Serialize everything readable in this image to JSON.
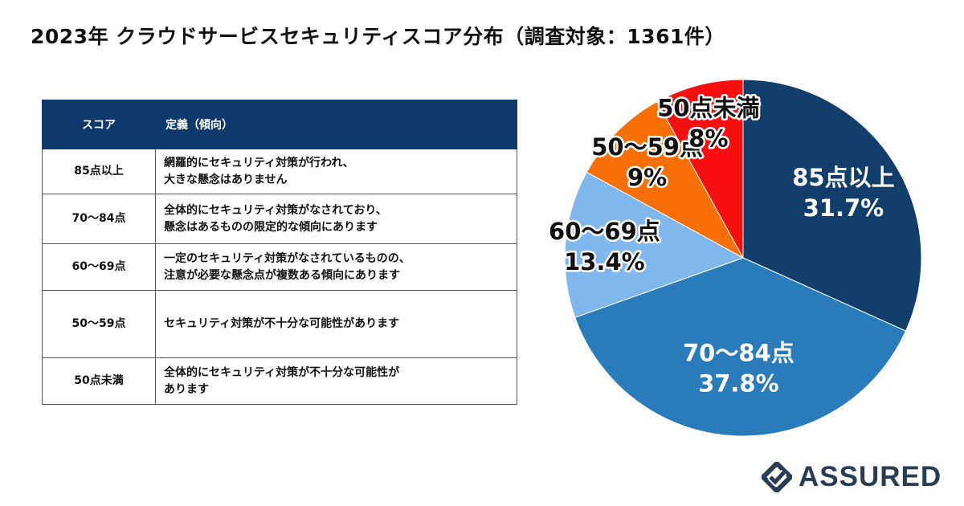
{
  "title": "2023年 クラウドサービスセキュリティスコア分布（調査対象：1361件）",
  "table": {
    "headers": [
      "スコア",
      "定義（傾向）"
    ],
    "rows": [
      {
        "score": "85点以上",
        "line1": "網羅的にセキュリティ対策が行われ、",
        "line2": "大きな懸念はありません"
      },
      {
        "score": "70〜84点",
        "line1": "全体的にセキュリティ対策がなされており、",
        "line2": "懸念はあるものの限定的な傾向にあります"
      },
      {
        "score": "60〜69点",
        "line1": "一定のセキュリティ対策がなされているものの、",
        "line2": "注意が必要な懸念点が複数ある傾向にあります"
      },
      {
        "score": "50〜59点",
        "line1": "セキュリティ対策が不十分な可能性があります",
        "line2": ""
      },
      {
        "score": "50点未満",
        "line1": "全体的にセキュリティ対策が不十分な可能性が",
        "line2": "あります"
      }
    ]
  },
  "chart_data": {
    "type": "pie",
    "title": "2023年 クラウドサービスセキュリティスコア分布（調査対象：1361件）",
    "start": "12 o'clock, clockwise",
    "slices": [
      {
        "label": "85点以上",
        "value": 31.7,
        "value_label": "31.7%",
        "color": "#123e6b",
        "text_color": "#ffffff"
      },
      {
        "label": "70〜84点",
        "value": 37.8,
        "value_label": "37.8%",
        "color": "#2a7bba",
        "text_color": "#ffffff"
      },
      {
        "label": "60〜69点",
        "value": 13.4,
        "value_label": "13.4%",
        "color": "#80b8ee",
        "text_color": "#111111"
      },
      {
        "label": "50〜59点",
        "value": 9,
        "value_label": "9%",
        "color": "#f86f07",
        "text_color": "#111111"
      },
      {
        "label": "50点未満",
        "value": 8,
        "value_label": "8%",
        "color": "#f80f0f",
        "text_color": "#111111"
      }
    ]
  },
  "logo": {
    "text": "ASSURED",
    "color": "#2a3d55"
  }
}
